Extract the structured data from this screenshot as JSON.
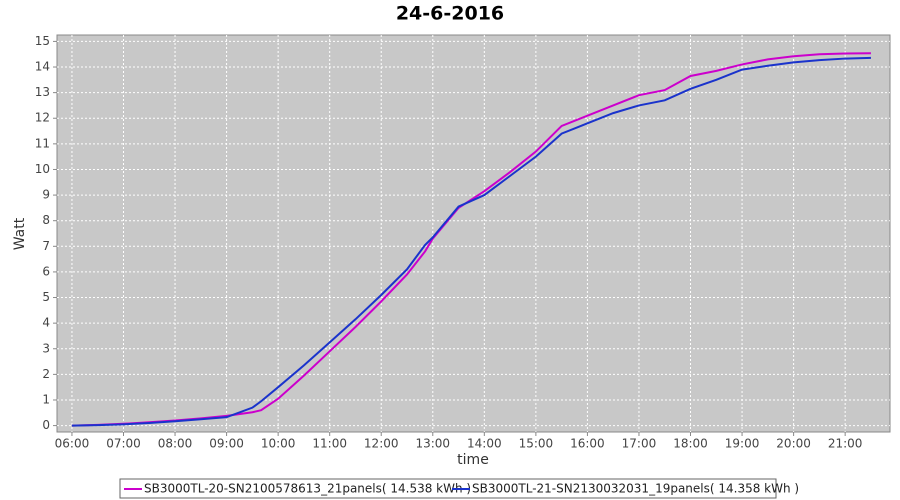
{
  "chart_data": {
    "type": "line",
    "title": "24-6-2016",
    "x_label": "time",
    "y_label": "Watt",
    "x": [
      6,
      6.5,
      7,
      7.5,
      8,
      8.5,
      9,
      9.5,
      9.67,
      10,
      10.5,
      11,
      11.5,
      12,
      12.5,
      12.85,
      13,
      13.5,
      14,
      14.5,
      15,
      15.5,
      16,
      16.5,
      17,
      17.5,
      18,
      18.5,
      19,
      19.5,
      20,
      20.5,
      21,
      21.5
    ],
    "series": [
      {
        "name": "SB3000TL-20-SN2100578613_21panels( 14.538 kWh )",
        "color": "#cc00cc",
        "values": [
          0,
          0.03,
          0.07,
          0.13,
          0.2,
          0.28,
          0.38,
          0.52,
          0.6,
          1.05,
          1.95,
          2.9,
          3.85,
          4.85,
          5.9,
          6.8,
          7.3,
          8.5,
          9.15,
          9.9,
          10.7,
          11.7,
          12.1,
          12.5,
          12.9,
          13.1,
          13.65,
          13.85,
          14.1,
          14.3,
          14.42,
          14.5,
          14.53,
          14.538
        ]
      },
      {
        "name": "SB3000TL-21-SN2130032031_19panels( 14.358 kWh )",
        "color": "#1a33cc",
        "values": [
          0,
          0.02,
          0.05,
          0.1,
          0.17,
          0.25,
          0.33,
          0.7,
          0.95,
          1.5,
          2.35,
          3.25,
          4.15,
          5.1,
          6.1,
          7.05,
          7.35,
          8.55,
          9.0,
          9.75,
          10.5,
          11.4,
          11.8,
          12.2,
          12.5,
          12.7,
          13.15,
          13.5,
          13.9,
          14.05,
          14.18,
          14.27,
          14.33,
          14.358
        ]
      }
    ],
    "xlim": [
      5.71,
      21.87
    ],
    "xticks": [
      {
        "value": 6,
        "label": "06:00"
      },
      {
        "value": 7,
        "label": "07:00"
      },
      {
        "value": 8,
        "label": "08:00"
      },
      {
        "value": 9,
        "label": "09:00"
      },
      {
        "value": 10,
        "label": "10:00"
      },
      {
        "value": 11,
        "label": "11:00"
      },
      {
        "value": 12,
        "label": "12:00"
      },
      {
        "value": 13,
        "label": "13:00"
      },
      {
        "value": 14,
        "label": "14:00"
      },
      {
        "value": 15,
        "label": "15:00"
      },
      {
        "value": 16,
        "label": "16:00"
      },
      {
        "value": 17,
        "label": "17:00"
      },
      {
        "value": 18,
        "label": "18:00"
      },
      {
        "value": 19,
        "label": "19:00"
      },
      {
        "value": 20,
        "label": "20:00"
      },
      {
        "value": 21,
        "label": "21:00"
      }
    ],
    "ylim": [
      -0.25,
      15.25
    ],
    "yticks": [
      0,
      1,
      2,
      3,
      4,
      5,
      6,
      7,
      8,
      9,
      10,
      11,
      12,
      13,
      14,
      15
    ],
    "grid": true,
    "legend": "bottom"
  }
}
